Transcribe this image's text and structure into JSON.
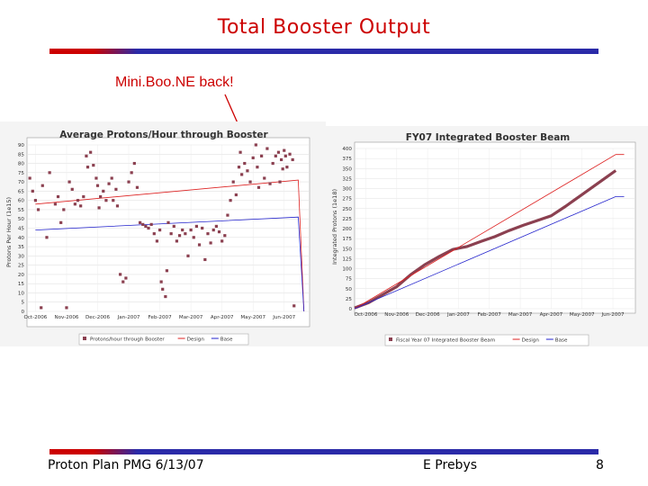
{
  "slide": {
    "title": "Total Booster Output",
    "annotation": "Mini.Boo.NE back!",
    "footer_left": "Proton Plan PMG 6/13/07",
    "footer_center": "E Prebys",
    "footer_right": "8"
  },
  "colors": {
    "title": "#cc0000",
    "rule_red": "#cc0000",
    "rule_blue": "#2a2aa8",
    "data": "#8b4050",
    "design": "#dd2222",
    "base": "#2222cc"
  },
  "chart_data": [
    {
      "type": "scatter",
      "title": "Average Protons/Hour through Booster",
      "xlabel": "",
      "ylabel": "Protons Per Hour (1e15)",
      "x_ticks": [
        "Oct-2006",
        "Nov-2006",
        "Dec-2006",
        "Jan-2007",
        "Feb-2007",
        "Mar-2007",
        "Apr-2007",
        "May-2007",
        "Jun-2007"
      ],
      "y_ticks": [
        "0",
        "5",
        "10",
        "15",
        "20",
        "25",
        "30",
        "35",
        "40",
        "45",
        "50",
        "55",
        "60",
        "65",
        "70",
        "75",
        "80",
        "85",
        "90"
      ],
      "ylim": [
        0,
        90
      ],
      "grid": true,
      "legend": [
        "Protons/hour through Booster",
        "Design",
        "Base"
      ],
      "legend_position": "bottom",
      "series": [
        {
          "name": "Protons/hour through Booster",
          "points": [
            [
              0.1,
              72
            ],
            [
              0.2,
              65
            ],
            [
              0.3,
              60
            ],
            [
              0.4,
              55
            ],
            [
              0.5,
              2
            ],
            [
              0.55,
              68
            ],
            [
              0.7,
              40
            ],
            [
              0.8,
              75
            ],
            [
              1.0,
              58
            ],
            [
              1.1,
              62
            ],
            [
              1.2,
              48
            ],
            [
              1.3,
              55
            ],
            [
              1.4,
              2
            ],
            [
              1.5,
              70
            ],
            [
              1.6,
              66
            ],
            [
              1.7,
              58
            ],
            [
              1.8,
              60
            ],
            [
              1.9,
              57
            ],
            [
              2.0,
              62
            ],
            [
              2.1,
              84
            ],
            [
              2.15,
              78
            ],
            [
              2.25,
              86
            ],
            [
              2.35,
              79
            ],
            [
              2.45,
              72
            ],
            [
              2.5,
              68
            ],
            [
              2.55,
              56
            ],
            [
              2.6,
              62
            ],
            [
              2.7,
              65
            ],
            [
              2.8,
              60
            ],
            [
              2.9,
              69
            ],
            [
              3.0,
              72
            ],
            [
              3.05,
              60
            ],
            [
              3.15,
              66
            ],
            [
              3.2,
              57
            ],
            [
              3.3,
              20
            ],
            [
              3.4,
              16
            ],
            [
              3.5,
              18
            ],
            [
              3.6,
              70
            ],
            [
              3.7,
              75
            ],
            [
              3.8,
              80
            ],
            [
              3.9,
              67
            ],
            [
              4.0,
              48
            ],
            [
              4.1,
              47
            ],
            [
              4.2,
              46
            ],
            [
              4.3,
              45
            ],
            [
              4.4,
              47
            ],
            [
              4.5,
              42
            ],
            [
              4.6,
              38
            ],
            [
              4.7,
              44
            ],
            [
              4.75,
              16
            ],
            [
              4.8,
              12
            ],
            [
              4.9,
              8
            ],
            [
              4.95,
              22
            ],
            [
              5.0,
              48
            ],
            [
              5.1,
              42
            ],
            [
              5.2,
              46
            ],
            [
              5.3,
              38
            ],
            [
              5.4,
              41
            ],
            [
              5.5,
              44
            ],
            [
              5.6,
              42
            ],
            [
              5.7,
              30
            ],
            [
              5.8,
              44
            ],
            [
              5.9,
              40
            ],
            [
              6.0,
              46
            ],
            [
              6.1,
              36
            ],
            [
              6.2,
              45
            ],
            [
              6.3,
              28
            ],
            [
              6.4,
              42
            ],
            [
              6.5,
              37
            ],
            [
              6.6,
              44
            ],
            [
              6.7,
              46
            ],
            [
              6.8,
              43
            ],
            [
              6.9,
              38
            ],
            [
              7.0,
              41
            ],
            [
              7.1,
              52
            ],
            [
              7.2,
              60
            ],
            [
              7.3,
              70
            ],
            [
              7.4,
              63
            ],
            [
              7.5,
              78
            ],
            [
              7.55,
              86
            ],
            [
              7.6,
              74
            ],
            [
              7.7,
              80
            ],
            [
              7.8,
              76
            ],
            [
              7.9,
              70
            ],
            [
              8.0,
              83
            ],
            [
              8.1,
              90
            ],
            [
              8.15,
              78
            ],
            [
              8.2,
              67
            ],
            [
              8.3,
              84
            ],
            [
              8.4,
              72
            ],
            [
              8.5,
              88
            ],
            [
              8.6,
              69
            ],
            [
              8.7,
              80
            ],
            [
              8.8,
              84
            ],
            [
              8.9,
              86
            ],
            [
              8.95,
              70
            ],
            [
              9.0,
              82
            ],
            [
              9.05,
              77
            ],
            [
              9.1,
              87
            ],
            [
              9.15,
              84
            ],
            [
              9.2,
              78
            ],
            [
              9.3,
              85
            ],
            [
              9.4,
              82
            ],
            [
              9.45,
              3
            ]
          ]
        },
        {
          "name": "Design",
          "points": [
            [
              0.3,
              58
            ],
            [
              9.6,
              71
            ],
            [
              9.8,
              0
            ]
          ]
        },
        {
          "name": "Base",
          "points": [
            [
              0.3,
              44
            ],
            [
              9.6,
              51
            ],
            [
              9.8,
              0
            ]
          ]
        }
      ]
    },
    {
      "type": "line",
      "title": "FY07 Integrated Booster Beam",
      "xlabel": "",
      "ylabel": "Integrated Protons (1e18)",
      "x_ticks": [
        "Oct-2006",
        "Nov-2006",
        "Dec-2006",
        "Jan-2007",
        "Feb-2007",
        "Mar-2007",
        "Apr-2007",
        "May-2007",
        "Jun-2007"
      ],
      "y_ticks": [
        "0",
        "25",
        "50",
        "75",
        "100",
        "125",
        "150",
        "175",
        "200",
        "225",
        "250",
        "275",
        "300",
        "325",
        "350",
        "375",
        "400"
      ],
      "ylim": [
        0,
        400
      ],
      "grid": true,
      "legend": [
        "Fiscal Year 07 Integrated Booster Beam",
        "Design",
        "Base"
      ],
      "legend_position": "bottom",
      "series": [
        {
          "name": "Fiscal Year 07 Integrated Booster Beam",
          "points": [
            [
              0,
              2
            ],
            [
              0.5,
              15
            ],
            [
              1,
              35
            ],
            [
              1.5,
              55
            ],
            [
              2,
              85
            ],
            [
              2.5,
              110
            ],
            [
              3,
              130
            ],
            [
              3.5,
              148
            ],
            [
              4,
              155
            ],
            [
              4.5,
              168
            ],
            [
              5,
              180
            ],
            [
              5.5,
              195
            ],
            [
              6,
              208
            ],
            [
              6.5,
              220
            ],
            [
              7,
              232
            ],
            [
              7.5,
              255
            ],
            [
              8,
              280
            ],
            [
              8.5,
              305
            ],
            [
              9,
              330
            ],
            [
              9.3,
              345
            ]
          ]
        },
        {
          "name": "Design",
          "points": [
            [
              0,
              0
            ],
            [
              9.3,
              385
            ],
            [
              9.6,
              385
            ]
          ]
        },
        {
          "name": "Base",
          "points": [
            [
              0,
              0
            ],
            [
              9.3,
              280
            ],
            [
              9.6,
              280
            ]
          ]
        }
      ]
    }
  ]
}
